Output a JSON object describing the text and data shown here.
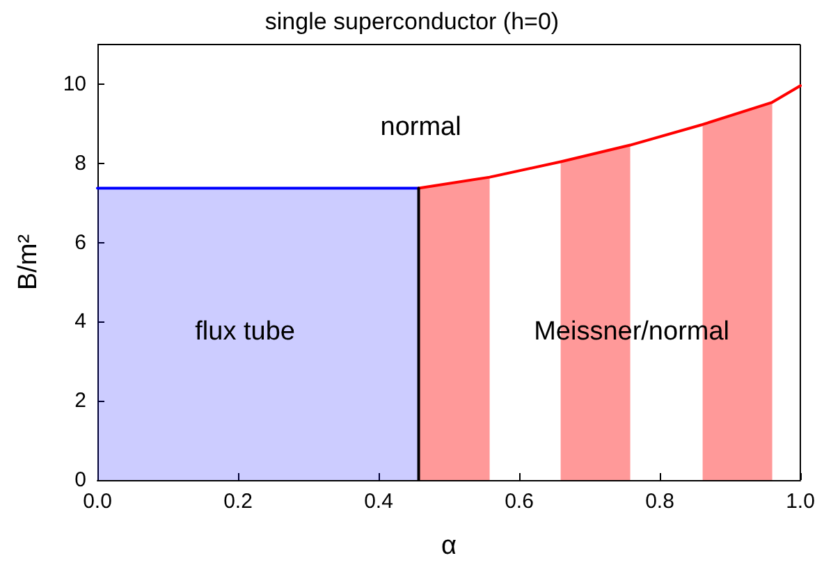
{
  "chart_data": {
    "type": "line",
    "title": "single superconductor (h=0)",
    "xlabel": "α",
    "ylabel": "B/m²",
    "xlim": [
      0,
      1
    ],
    "ylim": [
      0,
      11
    ],
    "series": [
      {
        "type": "area",
        "color": "#0000ff",
        "x": [
          0,
          0.457
        ],
        "values": [
          7.37,
          7.37
        ]
      },
      {
        "type": "area",
        "color": "#ff9999",
        "x": [
          0.457,
          0.558
        ],
        "values": [
          7.37,
          7.65
        ]
      },
      {
        "type": "area",
        "color": "#ff9999",
        "x": [
          0.659,
          0.758
        ],
        "values": [
          8.04,
          8.46
        ]
      },
      {
        "type": "area",
        "color": "#ff9999",
        "x": [
          0.861,
          0.96
        ],
        "values": [
          8.98,
          9.54
        ]
      },
      {
        "color": "#ff0000",
        "x": [
          0.457,
          0.558,
          0.659,
          0.758,
          0.861,
          0.96,
          1.0
        ],
        "values": [
          7.37,
          7.65,
          8.04,
          8.46,
          8.98,
          9.54,
          9.96
        ]
      },
      {
        "color": "#000000",
        "x": [
          0.457,
          0.457
        ],
        "values": [
          0,
          7.37
        ]
      }
    ],
    "xticks": [
      {
        "value": 0,
        "label": "0.0"
      },
      {
        "value": 0.2,
        "label": "0.2"
      },
      {
        "value": 0.4,
        "label": "0.4"
      },
      {
        "value": 0.6,
        "label": "0.6"
      },
      {
        "value": 0.8,
        "label": "0.8"
      },
      {
        "value": 1,
        "label": "1.0"
      }
    ],
    "yticks": [
      0,
      2,
      4,
      6,
      8,
      10
    ],
    "annotations": [
      "normal",
      "flux tube",
      "Meissner/normal"
    ],
    "grid": false,
    "marker": "none",
    "line_style": "solid"
  }
}
